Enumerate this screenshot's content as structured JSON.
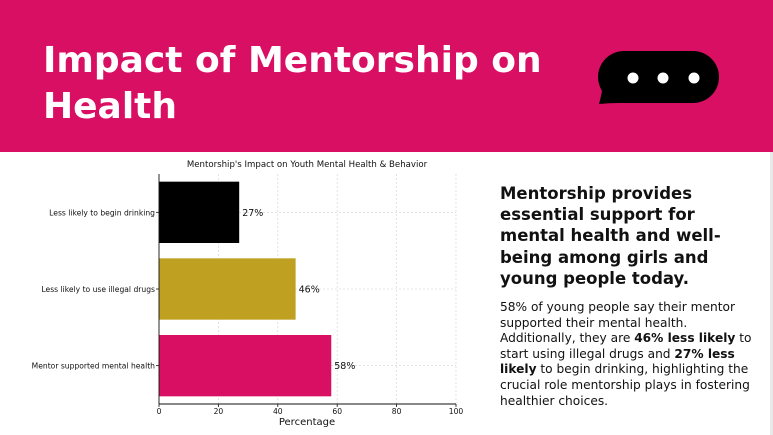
{
  "header": {
    "title": "Impact of Mentorship on Health",
    "icon": "chat-bubble-icon",
    "background": "#d90f63"
  },
  "chart_data": {
    "type": "bar",
    "orientation": "horizontal",
    "title": "Mentorship's Impact on Youth Mental Health & Behavior",
    "xlabel": "Percentage",
    "ylabel": "",
    "xlim": [
      0,
      100
    ],
    "xticks": [
      0,
      20,
      40,
      60,
      80,
      100
    ],
    "grid": true,
    "categories": [
      "Less likely to begin drinking",
      "Less likely to use illegal drugs",
      "Mentor supported mental health"
    ],
    "values": [
      27,
      46,
      58
    ],
    "value_labels": [
      "27%",
      "46%",
      "58%"
    ],
    "colors": [
      "#000000",
      "#bfa021",
      "#d90f63"
    ]
  },
  "content": {
    "headline": "Mentorship provides essential support for mental health and well-being among girls and young people today.",
    "paragraph": {
      "part1": "58% of young people say their mentor supported their mental health. Additionally, they are ",
      "bold1": "46% less likely",
      "part2": " to start using illegal drugs and ",
      "bold2": "27% less likely",
      "part3": " to begin drinking, highlighting the crucial role mentorship plays in fostering healthier choices."
    }
  }
}
